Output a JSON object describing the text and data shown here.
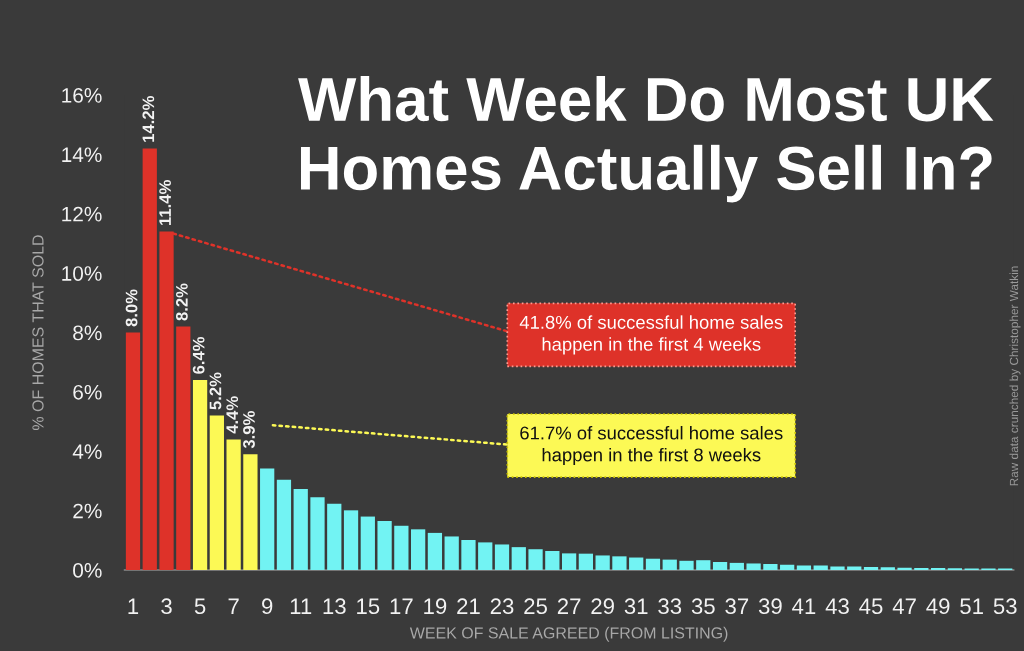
{
  "chart_data": {
    "type": "bar",
    "title": "What Week Do Most UK\nHomes Actually Sell In?",
    "xlabel": "WEEK OF SALE AGREED (FROM LISTING)",
    "ylabel": "% OF HOMES THAT SOLD",
    "x": [
      1,
      2,
      3,
      4,
      5,
      6,
      7,
      8,
      9,
      10,
      11,
      12,
      13,
      14,
      15,
      16,
      17,
      18,
      19,
      20,
      21,
      22,
      23,
      24,
      25,
      26,
      27,
      28,
      29,
      30,
      31,
      32,
      33,
      34,
      35,
      36,
      37,
      38,
      39,
      40,
      41,
      42,
      43,
      44,
      45,
      46,
      47,
      48,
      49,
      50,
      51,
      52,
      53
    ],
    "values": [
      8.0,
      14.2,
      11.4,
      8.2,
      6.4,
      5.2,
      4.4,
      3.9,
      3.42,
      3.04,
      2.73,
      2.45,
      2.23,
      2.01,
      1.8,
      1.65,
      1.49,
      1.37,
      1.25,
      1.13,
      1.01,
      0.93,
      0.86,
      0.77,
      0.7,
      0.64,
      0.56,
      0.55,
      0.49,
      0.46,
      0.42,
      0.38,
      0.35,
      0.31,
      0.33,
      0.27,
      0.24,
      0.22,
      0.2,
      0.18,
      0.15,
      0.15,
      0.12,
      0.12,
      0.1,
      0.09,
      0.08,
      0.07,
      0.07,
      0.06,
      0.05,
      0.05,
      0.05
    ],
    "colors": [
      "#de3229",
      "#de3229",
      "#de3229",
      "#de3229",
      "#fcf955",
      "#fcf955",
      "#fcf955",
      "#fcf955",
      "#72f3f3",
      "#72f3f3",
      "#72f3f3",
      "#72f3f3",
      "#72f3f3",
      "#72f3f3",
      "#72f3f3",
      "#72f3f3",
      "#72f3f3",
      "#72f3f3",
      "#72f3f3",
      "#72f3f3",
      "#72f3f3",
      "#72f3f3",
      "#72f3f3",
      "#72f3f3",
      "#72f3f3",
      "#72f3f3",
      "#72f3f3",
      "#72f3f3",
      "#72f3f3",
      "#72f3f3",
      "#72f3f3",
      "#72f3f3",
      "#72f3f3",
      "#72f3f3",
      "#72f3f3",
      "#72f3f3",
      "#72f3f3",
      "#72f3f3",
      "#72f3f3",
      "#72f3f3",
      "#72f3f3",
      "#72f3f3",
      "#72f3f3",
      "#72f3f3",
      "#72f3f3",
      "#72f3f3",
      "#72f3f3",
      "#72f3f3",
      "#72f3f3",
      "#72f3f3",
      "#72f3f3",
      "#72f3f3",
      "#72f3f3"
    ],
    "value_labels": [
      "8.0%",
      "14.2%",
      "11.4%",
      "8.2%",
      "6.4%",
      "5.2%",
      "4.4%",
      "3.9%",
      null,
      null,
      null,
      null,
      null,
      null,
      null,
      null,
      null,
      null,
      null,
      null,
      null,
      null,
      null,
      null,
      null,
      null,
      null,
      null,
      null,
      null,
      null,
      null,
      null,
      null,
      null,
      null,
      null,
      null,
      null,
      null,
      null,
      null,
      null,
      null,
      null,
      null,
      null,
      null,
      null,
      null,
      null,
      null,
      null
    ],
    "xlim": [
      0.5,
      53.5
    ],
    "xticks": [
      1,
      3,
      5,
      7,
      9,
      11,
      13,
      15,
      17,
      19,
      21,
      23,
      25,
      27,
      29,
      31,
      33,
      35,
      37,
      39,
      41,
      43,
      45,
      47,
      49,
      51,
      53
    ],
    "ylim": [
      0,
      16
    ],
    "yticks": [
      {
        "value": 0,
        "label": "0%"
      },
      {
        "value": 2,
        "label": "2%"
      },
      {
        "value": 4,
        "label": "4%"
      },
      {
        "value": 6,
        "label": "6%"
      },
      {
        "value": 8,
        "label": "8%"
      },
      {
        "value": 10,
        "label": "10%"
      },
      {
        "value": 12,
        "label": "12%"
      },
      {
        "value": 14,
        "label": "14%"
      },
      {
        "value": 16,
        "label": "16%"
      }
    ],
    "grid": false,
    "annotations": [
      {
        "text": "41.8% of successful home sales\nhappen in the first 4 weeks",
        "x": 3,
        "y": 11.4
      },
      "61.7% of successful home sales\nhappen in the first 8 weeks",
      "Raw data crunched by Christopher Watkin"
    ]
  }
}
